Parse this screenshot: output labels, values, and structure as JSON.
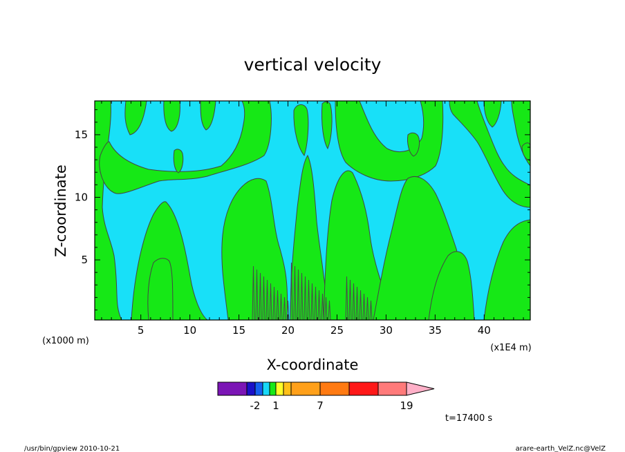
{
  "chart_data": {
    "type": "heatmap",
    "title": "vertical velocity",
    "xlabel": "X-coordinate",
    "ylabel": "Z-coordinate",
    "x_unit_left": "(x1000 m)",
    "x_unit_right": "(x1E4 m)",
    "xlim": [
      0.3,
      44.7
    ],
    "ylim": [
      0.2,
      17.7
    ],
    "x_ticks": [
      5,
      10,
      15,
      20,
      25,
      30,
      35,
      40
    ],
    "y_ticks": [
      5,
      10,
      15
    ],
    "x_tick_labels": [
      "5",
      "10",
      "15",
      "20",
      "25",
      "30",
      "35",
      "40"
    ],
    "y_tick_labels": [
      "5",
      "10",
      "15"
    ],
    "colorbar": {
      "colors": [
        "#7b15b5",
        "#1a10c8",
        "#1560f0",
        "#18d8f8",
        "#17e817",
        "#ffff28",
        "#ffc018",
        "#ffa01a",
        "#ff7a12",
        "#ff1818",
        "#ff7a7a",
        "#ffb0c8"
      ],
      "labels": [
        "-2",
        "1",
        "7",
        "19"
      ]
    },
    "field_colors": {
      "cyan": "#18e0f8",
      "green": "#16e816",
      "contour": "#444444"
    },
    "time_label": "t=17400 s",
    "footer_left": "/usr/bin/gpview  2010-10-21",
    "footer_right": "arare-earth_VelZ.nc@VelZ"
  }
}
